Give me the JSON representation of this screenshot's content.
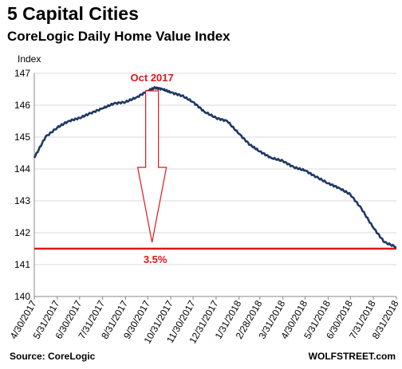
{
  "header": {
    "title": "5 Capital Cities",
    "subtitle": "CoreLogic Daily Home Value Index"
  },
  "footer": {
    "source": "Source: CoreLogic",
    "watermark": "WOLFSTREET.com"
  },
  "colors": {
    "series": "#1f3864",
    "accent_red": "#e0161d",
    "grid": "#d9d9d9"
  },
  "chart_data": {
    "type": "line",
    "title": "5 Capital Cities",
    "subtitle": "CoreLogic Daily Home Value Index",
    "ylabel": "Index",
    "xlabel": "",
    "ylim": [
      140,
      147
    ],
    "yticks": [
      "140",
      "141",
      "142",
      "143",
      "144",
      "145",
      "146",
      "147"
    ],
    "xticks": [
      "4/30/2017",
      "5/31/2017",
      "6/30/2017",
      "7/31/2017",
      "8/31/2017",
      "9/30/2017",
      "10/31/2017",
      "11/30/2017",
      "12/31/2017",
      "1/31/2018",
      "2/28/2018",
      "3/31/2018",
      "4/30/2018",
      "5/31/2018",
      "6/30/2018",
      "7/31/2018",
      "8/31/2018"
    ],
    "grid": true,
    "series": [
      {
        "x": [
          "4/30/2017",
          "5/15/2017",
          "5/31/2017",
          "6/15/2017",
          "6/30/2017",
          "7/15/2017",
          "7/31/2017",
          "8/15/2017",
          "8/31/2017",
          "9/15/2017",
          "9/30/2017",
          "10/10/2017",
          "10/20/2017",
          "10/31/2017",
          "11/15/2017",
          "11/30/2017",
          "12/15/2017",
          "12/31/2017",
          "1/15/2018",
          "1/31/2018",
          "2/15/2018",
          "2/28/2018",
          "3/15/2018",
          "3/31/2018",
          "4/15/2018",
          "4/30/2018",
          "5/15/2018",
          "5/31/2018",
          "6/15/2018",
          "6/30/2018",
          "7/15/2018",
          "7/31/2018",
          "8/15/2018",
          "8/31/2018"
        ],
        "values": [
          144.35,
          145.0,
          145.3,
          145.5,
          145.6,
          145.75,
          145.9,
          146.05,
          146.1,
          146.25,
          146.45,
          146.55,
          146.5,
          146.4,
          146.3,
          146.1,
          145.8,
          145.6,
          145.5,
          145.1,
          144.75,
          144.55,
          144.35,
          144.25,
          144.05,
          143.95,
          143.75,
          143.55,
          143.4,
          143.2,
          142.75,
          142.15,
          141.7,
          141.55
        ]
      }
    ],
    "annotations": {
      "peak_label": "Oct 2017",
      "reference_line_value": 141.5,
      "drop_label": "3.5%"
    }
  }
}
